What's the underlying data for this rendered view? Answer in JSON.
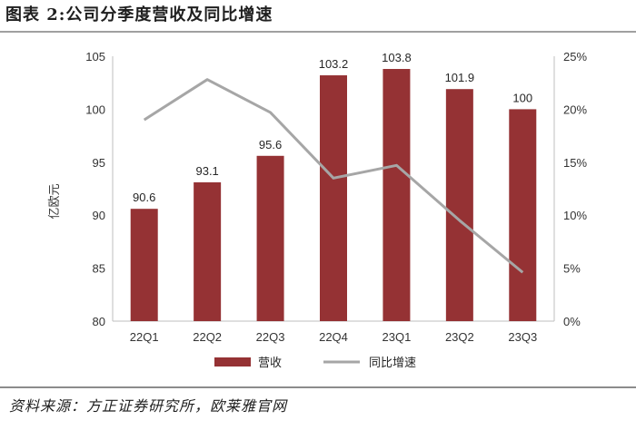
{
  "title": "图表 2:公司分季度营收及同比增速",
  "source": "资料来源：方正证券研究所，欧莱雅官网",
  "chart_data": {
    "type": "bar",
    "categories": [
      "22Q1",
      "22Q2",
      "22Q3",
      "22Q4",
      "23Q1",
      "23Q2",
      "23Q3"
    ],
    "series": [
      {
        "name": "营收",
        "type": "bar",
        "axis": "left",
        "color": "#953234",
        "values": [
          90.6,
          93.1,
          95.6,
          103.2,
          103.8,
          101.9,
          100
        ],
        "labels": [
          "90.6",
          "93.1",
          "95.6",
          "103.2",
          "103.8",
          "101.9",
          "100"
        ]
      },
      {
        "name": "同比增速",
        "type": "line",
        "axis": "right",
        "color": "#a6a6a6",
        "values": [
          0.19,
          0.228,
          0.197,
          0.135,
          0.147,
          0.095,
          0.046
        ]
      }
    ],
    "ylabel": "亿欧元",
    "ylim": [
      80,
      105
    ],
    "yticks": [
      "80",
      "85",
      "90",
      "95",
      "100",
      "105"
    ],
    "y2lim": [
      0,
      0.25
    ],
    "y2ticks": [
      "0%",
      "5%",
      "10%",
      "15%",
      "20%",
      "25%"
    ],
    "grid": false,
    "legend": "bottom"
  }
}
